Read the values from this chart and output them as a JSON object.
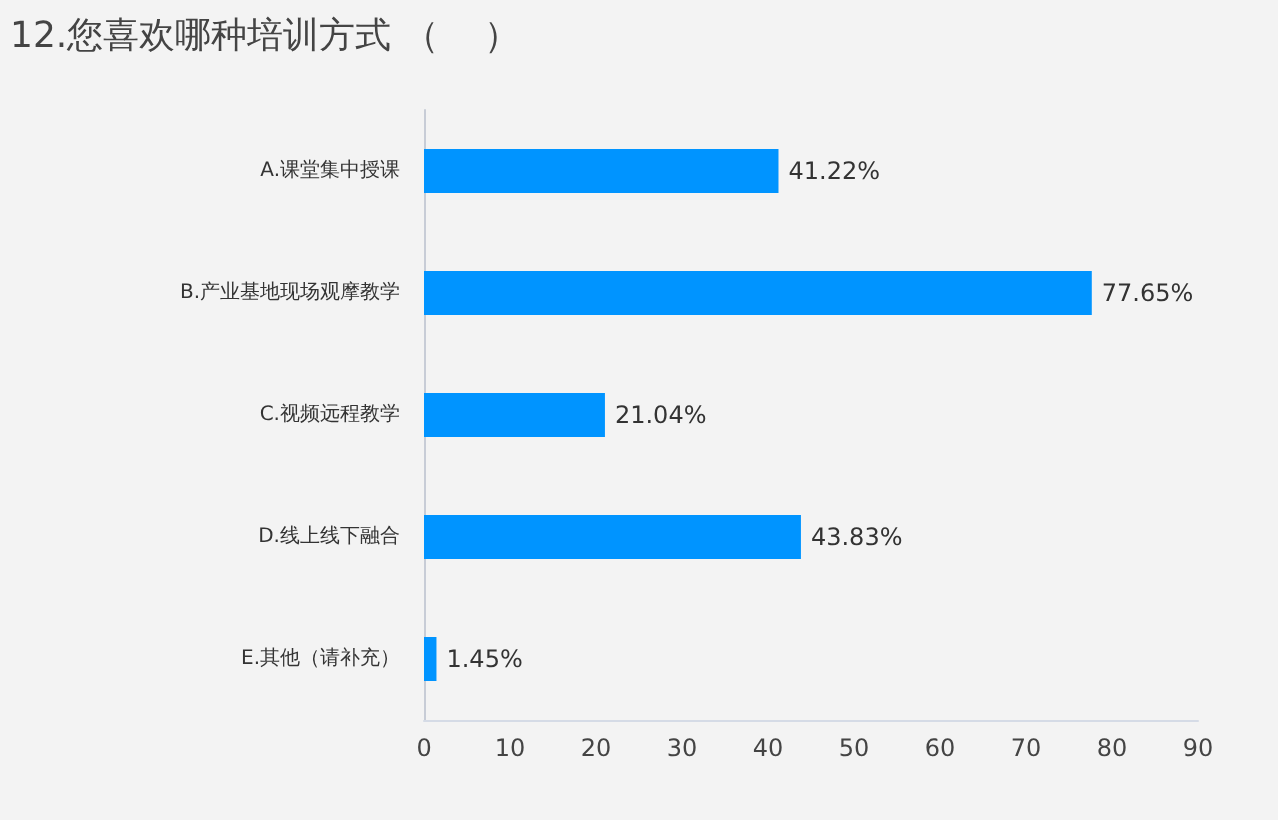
{
  "chart_data": {
    "type": "bar",
    "orientation": "horizontal",
    "title": "12.您喜欢哪种培训方式 （    ）",
    "categories": [
      "A.课堂集中授课",
      "B.产业基地现场观摩教学",
      "C.视频远程教学",
      "D.线上线下融合",
      "E.其他（请补充）"
    ],
    "values": [
      41.22,
      77.65,
      21.04,
      43.83,
      1.45
    ],
    "value_labels": [
      "41.22%",
      "77.65%",
      "21.04%",
      "43.83%",
      "1.45%"
    ],
    "color": "#0094ff",
    "xlim": [
      0,
      90
    ],
    "xticks": [
      0,
      10,
      20,
      30,
      40,
      50,
      60,
      70,
      80,
      90
    ],
    "grid": false
  }
}
